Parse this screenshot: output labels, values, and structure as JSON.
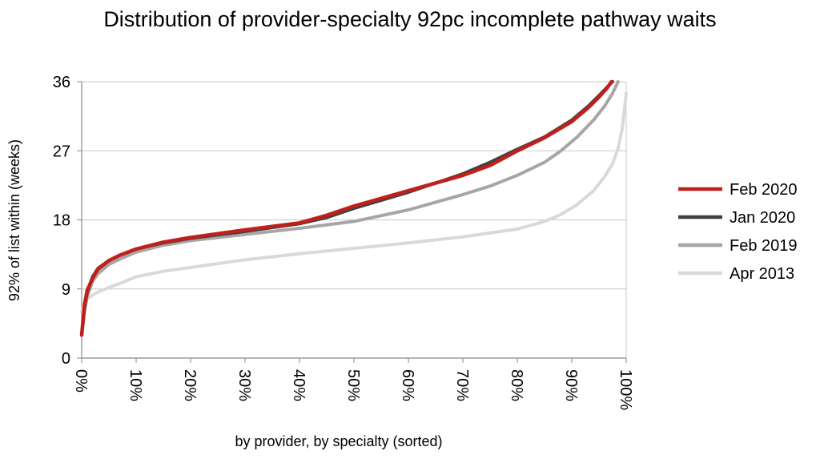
{
  "chart_data": {
    "type": "line",
    "title": "Distribution of provider-specialty 92pc incomplete pathway waits",
    "xlabel": "by provider, by specialty (sorted)",
    "ylabel": "92% of list within (weeks)",
    "xlim": [
      0,
      100
    ],
    "ylim": [
      0,
      36
    ],
    "x_ticks": [
      "0%",
      "10%",
      "20%",
      "30%",
      "40%",
      "50%",
      "60%",
      "70%",
      "80%",
      "90%",
      "100%"
    ],
    "y_ticks": [
      "0",
      "9",
      "18",
      "27",
      "36"
    ],
    "grid": "horizontal",
    "legend": "right",
    "series": [
      {
        "name": "Apr 2013",
        "color": "#d9d9d9",
        "x": [
          0,
          0.5,
          1,
          2,
          3,
          5,
          7,
          10,
          15,
          20,
          30,
          40,
          50,
          60,
          70,
          80,
          85,
          88,
          91,
          94,
          96,
          97.5,
          98.5,
          99.3,
          100
        ],
        "y": [
          6.0,
          7.2,
          7.7,
          8.2,
          8.6,
          9.2,
          9.7,
          10.6,
          11.3,
          11.8,
          12.8,
          13.6,
          14.3,
          15.0,
          15.8,
          16.8,
          17.8,
          18.7,
          20.0,
          21.8,
          23.6,
          25.3,
          27.3,
          30.0,
          34.5
        ]
      },
      {
        "name": "Feb 2019",
        "color": "#a6a6a6",
        "x": [
          0,
          0.5,
          1,
          2,
          3,
          5,
          7,
          10,
          15,
          20,
          30,
          40,
          50,
          60,
          70,
          75,
          80,
          85,
          88,
          91,
          94,
          96,
          97.5,
          98.5
        ],
        "y": [
          3.0,
          6.0,
          8.0,
          10.0,
          11.0,
          12.2,
          12.9,
          13.8,
          14.7,
          15.3,
          16.1,
          16.9,
          17.8,
          19.3,
          21.3,
          22.4,
          23.8,
          25.5,
          27.0,
          28.8,
          31.0,
          32.8,
          34.5,
          36.0
        ]
      },
      {
        "name": "Jan 2020",
        "color": "#404040",
        "x": [
          0,
          0.5,
          1,
          2,
          3,
          5,
          7,
          10,
          15,
          20,
          30,
          40,
          45,
          50,
          60,
          70,
          75,
          80,
          85,
          90,
          93,
          95,
          96.5,
          97.5
        ],
        "y": [
          3.0,
          6.5,
          8.5,
          10.6,
          11.7,
          12.7,
          13.4,
          14.2,
          15.0,
          15.6,
          16.5,
          17.5,
          18.3,
          19.5,
          21.6,
          24.0,
          25.5,
          27.2,
          28.8,
          31.0,
          32.8,
          34.2,
          35.3,
          36.0
        ]
      },
      {
        "name": "Feb 2020",
        "color": "#c0201c",
        "x": [
          0,
          0.5,
          1,
          2,
          3,
          5,
          7,
          10,
          15,
          20,
          30,
          40,
          45,
          50,
          60,
          70,
          75,
          80,
          85,
          90,
          93,
          95,
          96.5,
          97.3
        ],
        "y": [
          3.0,
          6.8,
          8.8,
          10.4,
          11.6,
          12.7,
          13.4,
          14.2,
          15.1,
          15.7,
          16.7,
          17.6,
          18.6,
          19.8,
          21.8,
          23.8,
          25.1,
          27.0,
          28.7,
          30.8,
          32.6,
          34.0,
          35.2,
          36.0
        ]
      }
    ],
    "legend_order": [
      "Feb 2020",
      "Jan 2020",
      "Feb 2019",
      "Apr 2013"
    ]
  }
}
